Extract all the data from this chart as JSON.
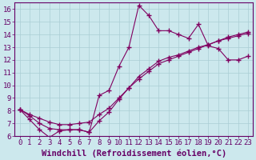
{
  "background_color": "#cce8ed",
  "grid_color": "#aacdd4",
  "line_color": "#800060",
  "xlabel": "Windchill (Refroidissement éolien,°C)",
  "xlim": [
    -0.5,
    23.5
  ],
  "ylim": [
    6,
    16.5
  ],
  "yticks": [
    6,
    7,
    8,
    9,
    10,
    11,
    12,
    13,
    14,
    15,
    16
  ],
  "xticks": [
    0,
    1,
    2,
    3,
    4,
    5,
    6,
    7,
    8,
    9,
    10,
    11,
    12,
    13,
    14,
    15,
    16,
    17,
    18,
    19,
    20,
    21,
    22,
    23
  ],
  "line1_x": [
    0,
    1,
    2,
    3,
    4,
    5,
    6,
    7,
    8,
    9,
    10,
    11,
    12,
    13,
    14,
    15,
    16,
    17,
    18,
    19,
    20,
    21,
    22,
    23
  ],
  "line1_y": [
    8.1,
    7.3,
    6.5,
    5.9,
    6.4,
    6.5,
    6.5,
    6.3,
    9.2,
    9.6,
    11.5,
    13.0,
    16.3,
    15.5,
    14.3,
    14.3,
    14.0,
    13.7,
    14.8,
    13.1,
    12.9,
    12.0,
    12.0,
    12.3
  ],
  "line2_x": [
    0,
    1,
    2,
    3,
    4,
    5,
    6,
    7,
    8,
    9,
    10,
    11,
    12,
    13,
    14,
    15,
    16,
    17,
    18,
    19,
    20,
    21,
    22,
    23
  ],
  "line2_y": [
    8.1,
    7.7,
    7.4,
    7.1,
    6.9,
    6.9,
    7.0,
    7.1,
    7.7,
    8.2,
    9.0,
    9.8,
    10.5,
    11.1,
    11.7,
    12.0,
    12.3,
    12.6,
    12.9,
    13.2,
    13.5,
    13.8,
    14.0,
    14.2
  ],
  "line3_x": [
    0,
    1,
    2,
    3,
    4,
    5,
    6,
    7,
    8,
    9,
    10,
    11,
    12,
    13,
    14,
    15,
    16,
    17,
    18,
    19,
    20,
    21,
    22,
    23
  ],
  "line3_y": [
    8.1,
    7.6,
    7.0,
    6.6,
    6.5,
    6.5,
    6.5,
    6.3,
    7.2,
    7.9,
    8.9,
    9.8,
    10.7,
    11.3,
    11.9,
    12.2,
    12.4,
    12.7,
    13.0,
    13.2,
    13.5,
    13.7,
    13.9,
    14.1
  ],
  "font_color": "#660066",
  "tick_fontsize": 6.5,
  "xlabel_fontsize": 7.5
}
